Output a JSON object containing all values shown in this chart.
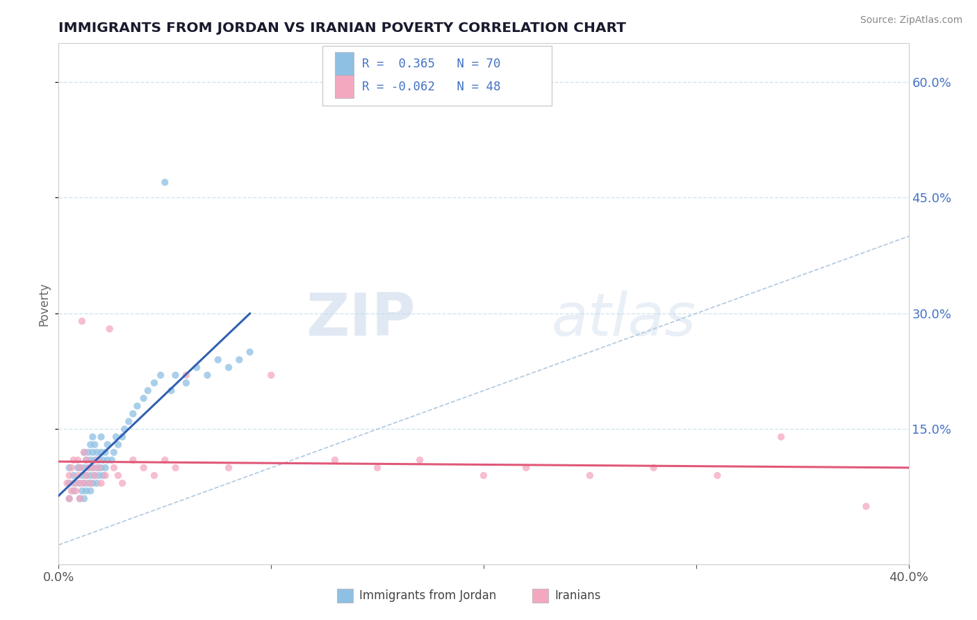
{
  "title": "IMMIGRANTS FROM JORDAN VS IRANIAN POVERTY CORRELATION CHART",
  "source": "Source: ZipAtlas.com",
  "ylabel": "Poverty",
  "xlim": [
    0.0,
    0.4
  ],
  "ylim": [
    -0.025,
    0.65
  ],
  "xticks": [
    0.0,
    0.1,
    0.2,
    0.3,
    0.4
  ],
  "xticklabels": [
    "0.0%",
    "",
    "",
    "",
    "40.0%"
  ],
  "yticks_right": [
    0.15,
    0.3,
    0.45,
    0.6
  ],
  "ytick_right_labels": [
    "15.0%",
    "30.0%",
    "45.0%",
    "60.0%"
  ],
  "R1": 0.365,
  "N1": 70,
  "R2": -0.062,
  "N2": 48,
  "color_jordan": "#8ec0e4",
  "color_iranian": "#f4a8c0",
  "color_jordan_line": "#3060b0",
  "color_iranian_line": "#e05878",
  "legend_label1": "Immigrants from Jordan",
  "legend_label2": "Iranians",
  "watermark_zip": "ZIP",
  "watermark_atlas": "atlas",
  "jordan_x": [
    0.005,
    0.005,
    0.005,
    0.007,
    0.007,
    0.008,
    0.009,
    0.01,
    0.01,
    0.01,
    0.011,
    0.011,
    0.012,
    0.012,
    0.012,
    0.012,
    0.013,
    0.013,
    0.013,
    0.014,
    0.014,
    0.014,
    0.015,
    0.015,
    0.015,
    0.015,
    0.016,
    0.016,
    0.016,
    0.016,
    0.017,
    0.017,
    0.017,
    0.018,
    0.018,
    0.018,
    0.019,
    0.019,
    0.02,
    0.02,
    0.02,
    0.021,
    0.021,
    0.022,
    0.022,
    0.023,
    0.023,
    0.025,
    0.026,
    0.027,
    0.028,
    0.03,
    0.031,
    0.033,
    0.035,
    0.037,
    0.04,
    0.042,
    0.045,
    0.048,
    0.05,
    0.053,
    0.055,
    0.06,
    0.065,
    0.07,
    0.075,
    0.08,
    0.085,
    0.09
  ],
  "jordan_y": [
    0.06,
    0.08,
    0.1,
    0.07,
    0.09,
    0.08,
    0.1,
    0.06,
    0.08,
    0.1,
    0.07,
    0.09,
    0.06,
    0.08,
    0.1,
    0.12,
    0.07,
    0.09,
    0.11,
    0.08,
    0.1,
    0.12,
    0.07,
    0.09,
    0.11,
    0.13,
    0.08,
    0.1,
    0.12,
    0.14,
    0.09,
    0.11,
    0.13,
    0.08,
    0.1,
    0.12,
    0.09,
    0.11,
    0.1,
    0.12,
    0.14,
    0.09,
    0.11,
    0.1,
    0.12,
    0.11,
    0.13,
    0.11,
    0.12,
    0.14,
    0.13,
    0.14,
    0.15,
    0.16,
    0.17,
    0.18,
    0.19,
    0.2,
    0.21,
    0.22,
    0.47,
    0.2,
    0.22,
    0.21,
    0.23,
    0.22,
    0.24,
    0.23,
    0.24,
    0.25
  ],
  "iranian_x": [
    0.004,
    0.005,
    0.005,
    0.006,
    0.006,
    0.007,
    0.007,
    0.008,
    0.009,
    0.009,
    0.01,
    0.01,
    0.01,
    0.011,
    0.012,
    0.012,
    0.013,
    0.013,
    0.014,
    0.015,
    0.016,
    0.017,
    0.018,
    0.019,
    0.02,
    0.022,
    0.024,
    0.026,
    0.028,
    0.03,
    0.035,
    0.04,
    0.045,
    0.05,
    0.055,
    0.06,
    0.08,
    0.1,
    0.13,
    0.15,
    0.17,
    0.2,
    0.22,
    0.25,
    0.28,
    0.31,
    0.34,
    0.38
  ],
  "iranian_y": [
    0.08,
    0.06,
    0.09,
    0.07,
    0.1,
    0.08,
    0.11,
    0.07,
    0.09,
    0.11,
    0.06,
    0.08,
    0.1,
    0.29,
    0.08,
    0.12,
    0.09,
    0.11,
    0.1,
    0.08,
    0.1,
    0.09,
    0.11,
    0.1,
    0.08,
    0.09,
    0.28,
    0.1,
    0.09,
    0.08,
    0.11,
    0.1,
    0.09,
    0.11,
    0.1,
    0.22,
    0.1,
    0.22,
    0.11,
    0.1,
    0.11,
    0.09,
    0.1,
    0.09,
    0.1,
    0.09,
    0.14,
    0.05
  ],
  "diag_line_color": "#b0c8e0",
  "grid_color": "#d0e4f0",
  "grid_style": "--"
}
